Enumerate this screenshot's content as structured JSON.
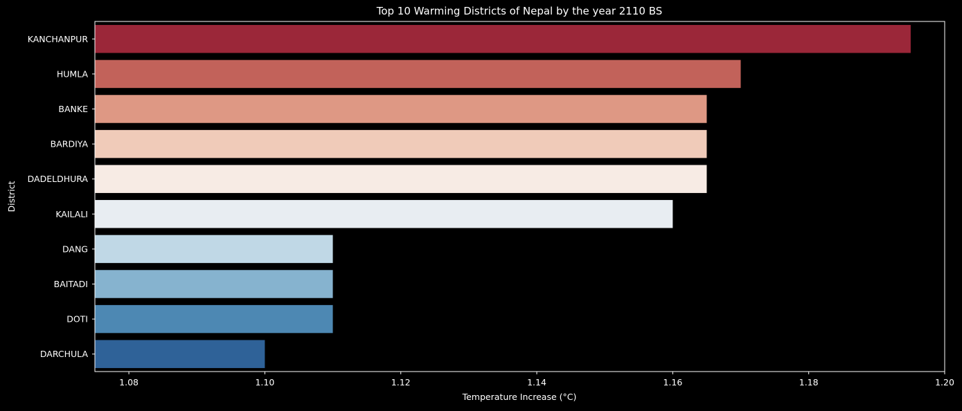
{
  "chart_data": {
    "type": "bar",
    "orientation": "horizontal",
    "title": "Top 10 Warming Districts of Nepal by the year 2110 BS",
    "xlabel": "Temperature Increase (°C)",
    "ylabel": "District",
    "xlim": [
      1.075,
      1.2
    ],
    "xticks": [
      1.08,
      1.1,
      1.12,
      1.14,
      1.16,
      1.18,
      1.2
    ],
    "xtick_labels": [
      "1.08",
      "1.10",
      "1.12",
      "1.14",
      "1.16",
      "1.18",
      "1.20"
    ],
    "categories": [
      "KANCHANPUR",
      "HUMLA",
      "BANKE",
      "BARDIYA",
      "DADELDHURA",
      "KAILALI",
      "DANG",
      "BAITADI",
      "DOTI",
      "DARCHULA"
    ],
    "values": [
      1.195,
      1.17,
      1.165,
      1.165,
      1.165,
      1.16,
      1.11,
      1.11,
      1.11,
      1.1
    ],
    "colors": [
      "#9b2739",
      "#c2625a",
      "#de9884",
      "#f0cbb9",
      "#f7ebe4",
      "#e8edf2",
      "#c0d8e6",
      "#86b3cf",
      "#4d88b3",
      "#2f6298"
    ],
    "background": "#000000",
    "text_color": "#ffffff",
    "grid": false,
    "legend": "none"
  }
}
